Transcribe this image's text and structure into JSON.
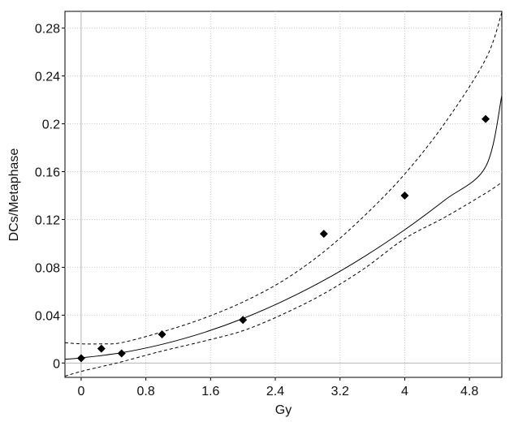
{
  "chart_data": {
    "type": "scatter",
    "title": "",
    "xlabel": "Gy",
    "ylabel": "DCs/Metaphase",
    "xlim": [
      -0.2,
      5.2
    ],
    "ylim": [
      -0.012,
      0.294
    ],
    "xticks": [
      0,
      0.8,
      1.6,
      2.4,
      3.2,
      4,
      4.8
    ],
    "xtick_labels": [
      "0",
      "0.8",
      "1.6",
      "2.4",
      "3.2",
      "4",
      "4.8"
    ],
    "yticks": [
      0,
      0.04,
      0.08,
      0.12,
      0.16,
      0.2,
      0.24,
      0.28
    ],
    "ytick_labels": [
      "0",
      "0.04",
      "0.08",
      "0.12",
      "0.16",
      "0.2",
      "0.24",
      "0.28"
    ],
    "grid": true,
    "legend": "none",
    "points": {
      "x": [
        0,
        0.25,
        0.5,
        1,
        2,
        3,
        4,
        5
      ],
      "y": [
        0.004,
        0.012,
        0.008,
        0.024,
        0.036,
        0.108,
        0.14,
        0.204
      ],
      "marker": "diamond",
      "color": "#000000"
    },
    "fit_curve": {
      "style": "solid",
      "color": "#000000",
      "x": [
        -0.2,
        0,
        0.5,
        1,
        1.5,
        2,
        2.5,
        3,
        3.5,
        4,
        4.5,
        5,
        5.2
      ],
      "y": [
        0.0031,
        0.0043,
        0.0086,
        0.0156,
        0.0251,
        0.0372,
        0.0519,
        0.0691,
        0.089,
        0.1114,
        0.1365,
        0.1641,
        0.2235
      ]
    },
    "confidence_upper": {
      "style": "dashed",
      "color": "#000000",
      "x": [
        -0.2,
        0,
        0.25,
        0.5,
        1,
        1.5,
        2,
        2.5,
        3,
        3.5,
        4,
        4.5,
        5,
        5.2
      ],
      "y": [
        0.017,
        0.016,
        0.016,
        0.017,
        0.026,
        0.037,
        0.051,
        0.069,
        0.093,
        0.123,
        0.158,
        0.201,
        0.254,
        0.293
      ]
    },
    "confidence_lower": {
      "style": "dashed",
      "color": "#000000",
      "x": [
        -0.2,
        0,
        0.25,
        0.5,
        1,
        1.5,
        2,
        2.5,
        3,
        3.5,
        4,
        4.5,
        5,
        5.2
      ],
      "y": [
        -0.011,
        -0.007,
        -0.003,
        0.001,
        0.01,
        0.018,
        0.027,
        0.041,
        0.058,
        0.079,
        0.104,
        0.122,
        0.142,
        0.151
      ]
    }
  }
}
